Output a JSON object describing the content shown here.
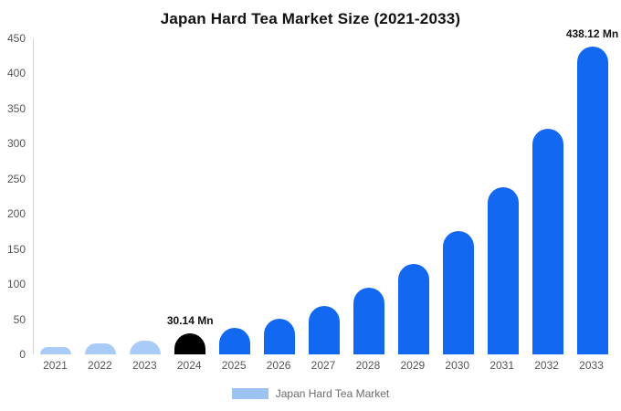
{
  "chart_data": {
    "type": "bar",
    "title": "Japan Hard Tea Market Size (2021-2033)",
    "categories": [
      "2021",
      "2022",
      "2023",
      "2024",
      "2025",
      "2026",
      "2027",
      "2028",
      "2029",
      "2030",
      "2031",
      "2032",
      "2033"
    ],
    "values": [
      11,
      15,
      20,
      30.14,
      38,
      51,
      69,
      95,
      129,
      176,
      238,
      321,
      438.12
    ],
    "bar_colors": [
      "#A9CBF7",
      "#A9CBF7",
      "#A9CBF7",
      "#000000",
      "#1368F2",
      "#1368F2",
      "#1368F2",
      "#1368F2",
      "#1368F2",
      "#1368F2",
      "#1368F2",
      "#1368F2",
      "#1368F2"
    ],
    "xlabel": "",
    "ylabel": "",
    "ylim": [
      0,
      450
    ],
    "yticks": [
      0,
      50,
      100,
      150,
      200,
      250,
      300,
      350,
      400,
      450
    ],
    "grid": false,
    "legend_position": "bottom",
    "annotations": [
      {
        "index": 3,
        "text": "30.14 Mn"
      },
      {
        "index": 12,
        "text": "438.12 Mn"
      }
    ]
  },
  "legend": {
    "label": "Japan Hard Tea Market",
    "swatch_color": "#9CC3F2"
  },
  "colors": {
    "primary_blue": "#1368F2",
    "light_blue": "#A9CBF7",
    "highlight_black": "#000000",
    "axis_line": "#d6d6d6",
    "tick_text": "#555555"
  }
}
